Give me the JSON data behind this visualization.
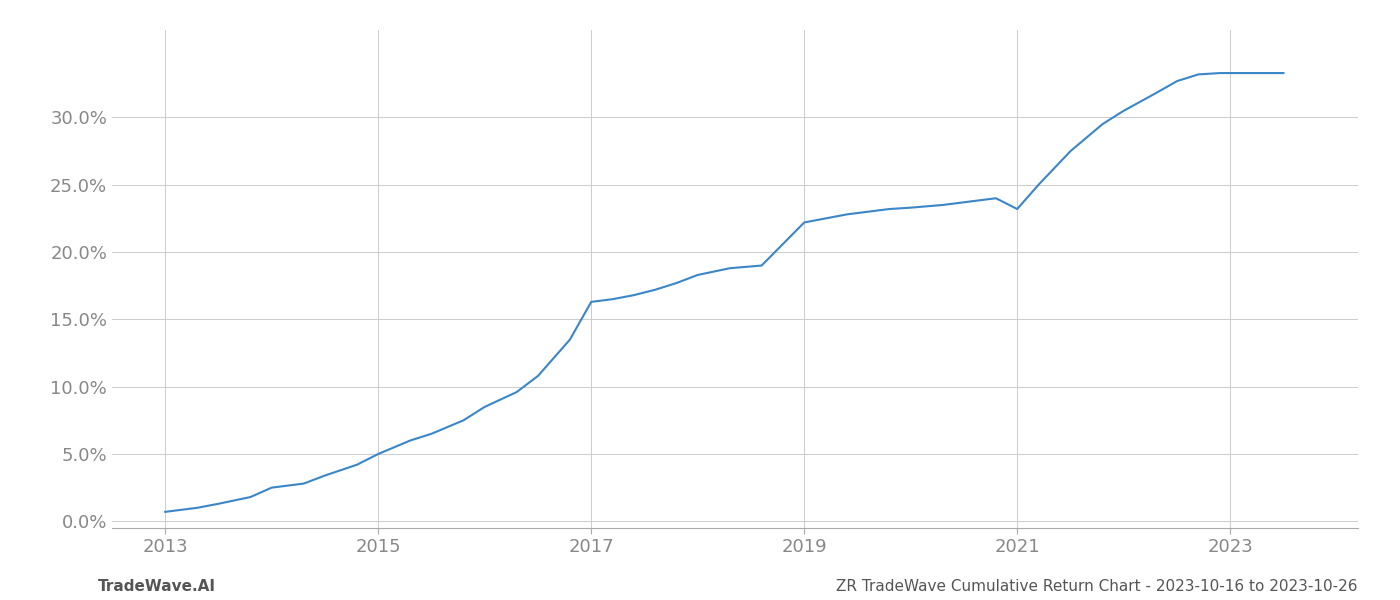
{
  "x_years": [
    2013.0,
    2013.3,
    2013.5,
    2013.8,
    2014.0,
    2014.3,
    2014.5,
    2014.8,
    2015.0,
    2015.3,
    2015.5,
    2015.8,
    2016.0,
    2016.3,
    2016.5,
    2016.8,
    2017.0,
    2017.2,
    2017.4,
    2017.6,
    2017.8,
    2018.0,
    2018.3,
    2018.6,
    2019.0,
    2019.2,
    2019.4,
    2019.6,
    2019.8,
    2020.0,
    2020.3,
    2020.5,
    2020.8,
    2021.0,
    2021.2,
    2021.5,
    2021.8,
    2022.0,
    2022.3,
    2022.5,
    2022.7,
    2022.9,
    2023.0,
    2023.5
  ],
  "y_values": [
    0.007,
    0.01,
    0.013,
    0.018,
    0.025,
    0.028,
    0.034,
    0.042,
    0.05,
    0.06,
    0.065,
    0.075,
    0.085,
    0.096,
    0.108,
    0.135,
    0.163,
    0.165,
    0.168,
    0.172,
    0.177,
    0.183,
    0.188,
    0.19,
    0.222,
    0.225,
    0.228,
    0.23,
    0.232,
    0.233,
    0.235,
    0.237,
    0.24,
    0.232,
    0.25,
    0.275,
    0.295,
    0.305,
    0.318,
    0.327,
    0.332,
    0.333,
    0.333,
    0.333
  ],
  "line_color": "#3a86c8",
  "line_width": 1.5,
  "background_color": "#ffffff",
  "grid_color": "#cccccc",
  "tick_color": "#888888",
  "x_ticks": [
    2013,
    2015,
    2017,
    2019,
    2021,
    2023
  ],
  "y_ticks": [
    0.0,
    0.05,
    0.1,
    0.15,
    0.2,
    0.25,
    0.3
  ],
  "y_tick_labels": [
    "0.0%",
    "5.0%",
    "10.0%",
    "15.0%",
    "20.0%",
    "25.0%",
    "30.0%"
  ],
  "xlim": [
    2012.5,
    2024.2
  ],
  "ylim": [
    -0.005,
    0.365
  ],
  "footer_left": "TradeWave.AI",
  "footer_right": "ZR TradeWave Cumulative Return Chart - 2023-10-16 to 2023-10-26",
  "footer_color": "#555555",
  "footer_fontsize": 11,
  "spine_color": "#aaaaaa",
  "tick_fontsize": 13
}
